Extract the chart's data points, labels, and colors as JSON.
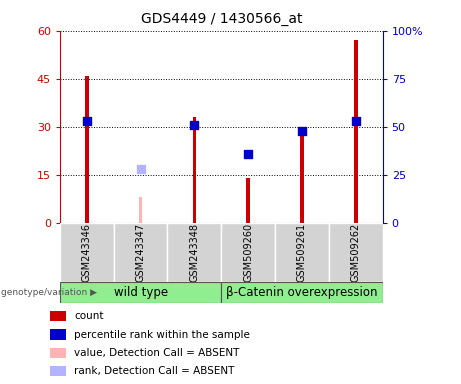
{
  "title": "GDS4449 / 1430566_at",
  "samples": [
    "GSM243346",
    "GSM243347",
    "GSM243348",
    "GSM509260",
    "GSM509261",
    "GSM509262"
  ],
  "count_values": [
    46,
    null,
    33,
    14,
    27,
    57
  ],
  "count_absent_values": [
    null,
    8,
    null,
    null,
    null,
    null
  ],
  "percentile_values": [
    53,
    null,
    51,
    36,
    48,
    53
  ],
  "percentile_absent_values": [
    null,
    28,
    null,
    null,
    null,
    null
  ],
  "ylim_left": [
    0,
    60
  ],
  "ylim_right": [
    0,
    100
  ],
  "yticks_left": [
    0,
    15,
    30,
    45,
    60
  ],
  "yticks_right": [
    0,
    25,
    50,
    75,
    100
  ],
  "ytick_labels_left": [
    "0",
    "15",
    "30",
    "45",
    "60"
  ],
  "ytick_labels_right": [
    "0",
    "25",
    "50",
    "75",
    "100%"
  ],
  "group1_label": "wild type",
  "group2_label": "β-Catenin overexpression",
  "genotype_label": "genotype/variation",
  "legend_items": [
    {
      "label": "count",
      "color": "#cc0000"
    },
    {
      "label": "percentile rank within the sample",
      "color": "#0000cc"
    },
    {
      "label": "value, Detection Call = ABSENT",
      "color": "#ffb3b3"
    },
    {
      "label": "rank, Detection Call = ABSENT",
      "color": "#b3b3ff"
    }
  ],
  "bar_color": "#cc0000",
  "bar_absent_color": "#ffb3b3",
  "dot_color": "#0000cc",
  "dot_absent_color": "#b3b3ff",
  "bar_width": 0.07,
  "dot_size": 30,
  "background_color": "#ffffff",
  "plot_bg_color": "#ffffff",
  "left_axis_color": "#cc0000",
  "right_axis_color": "#0000cc",
  "group_bg_color": "#90ee90",
  "sample_bg_color": "#d3d3d3"
}
